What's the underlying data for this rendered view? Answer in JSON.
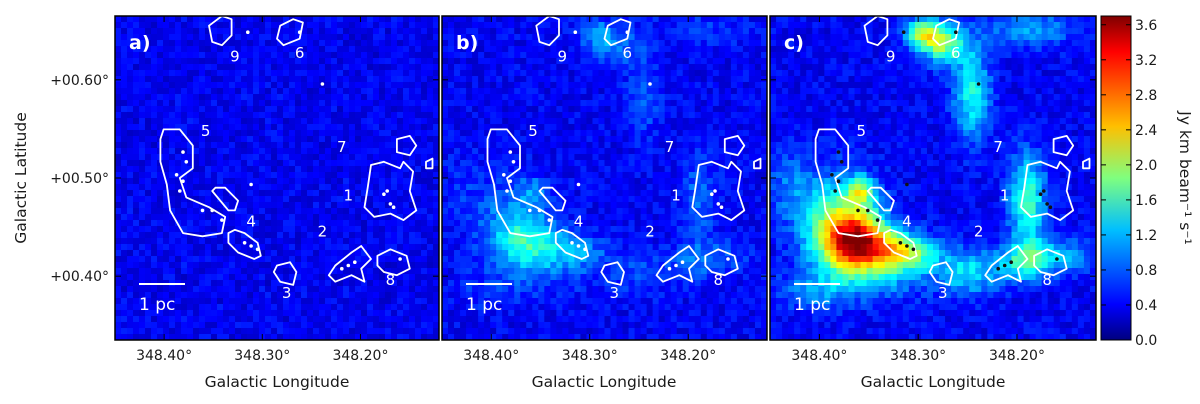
{
  "chart_data": {
    "type": "heatmap",
    "panels": [
      {
        "id": "a",
        "label": "a)",
        "intensity": "low"
      },
      {
        "id": "b",
        "label": "b)",
        "intensity": "medium"
      },
      {
        "id": "c",
        "label": "c)",
        "intensity": "high"
      }
    ],
    "x_axis": {
      "label": "Galactic Longitude",
      "ticks": [
        {
          "value": 348.4,
          "label": "348.40°"
        },
        {
          "value": 348.3,
          "label": "348.30°"
        },
        {
          "value": 348.2,
          "label": "348.20°"
        }
      ],
      "range": [
        348.45,
        348.12
      ]
    },
    "y_axis": {
      "label": "Galactic Latitude",
      "ticks": [
        {
          "value": 0.6,
          "label": "+00.60°"
        },
        {
          "value": 0.5,
          "label": "+00.50°"
        },
        {
          "value": 0.4,
          "label": "+00.40°"
        }
      ],
      "range": [
        0.335,
        0.665
      ]
    },
    "colorbar": {
      "label": "Jy km beam⁻¹ s⁻¹",
      "range": [
        0.0,
        3.7
      ],
      "ticks": [
        "0.0",
        "0.4",
        "0.8",
        "1.2",
        "1.6",
        "2.0",
        "2.4",
        "2.8",
        "3.2",
        "3.6"
      ],
      "colormap": "jet"
    },
    "scale_bar": "1 pc",
    "clumps": [
      {
        "id": "1",
        "label": "1"
      },
      {
        "id": "2",
        "label": "2"
      },
      {
        "id": "3",
        "label": "3"
      },
      {
        "id": "4",
        "label": "4"
      },
      {
        "id": "5",
        "label": "5"
      },
      {
        "id": "6",
        "label": "6"
      },
      {
        "id": "7",
        "label": "7"
      },
      {
        "id": "8",
        "label": "8"
      },
      {
        "id": "9",
        "label": "9"
      }
    ]
  }
}
